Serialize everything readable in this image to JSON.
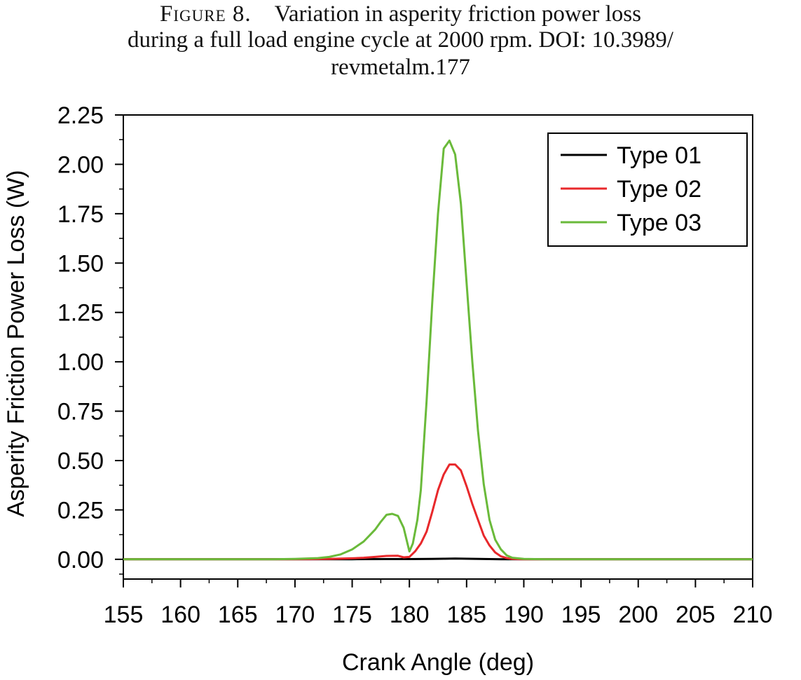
{
  "caption": {
    "figure_label": "Figure 8.",
    "line1": "Variation in asperity friction power loss",
    "line2": "during a full load engine cycle at 2000 rpm. DOI: 10.3989/",
    "line3": "revmetalm.177"
  },
  "chart_data": {
    "type": "line",
    "title": "",
    "xlabel": "Crank Angle (deg)",
    "ylabel": "Asperity Friction Power Loss (W)",
    "xlim": [
      155,
      210
    ],
    "ylim": [
      -0.1,
      2.25
    ],
    "x_ticks": [
      155,
      160,
      165,
      170,
      175,
      180,
      185,
      190,
      195,
      200,
      205,
      210
    ],
    "x_tick_labels": [
      "155",
      "160",
      "165",
      "170",
      "175",
      "180",
      "185",
      "190",
      "195",
      "200",
      "205",
      "210"
    ],
    "y_ticks": [
      0,
      0.25,
      0.5,
      0.75,
      1.0,
      1.25,
      1.5,
      1.75,
      2.0,
      2.25
    ],
    "y_tick_labels": [
      "0.00",
      "0.25",
      "0.50",
      "0.75",
      "1.00",
      "1.25",
      "1.50",
      "1.75",
      "2.00",
      "2.25"
    ],
    "grid": false,
    "legend_position": "top-right",
    "series": [
      {
        "name": "Type 01",
        "color": "#000000",
        "x": [
          155,
          170,
          175,
          178,
          180,
          182,
          183,
          184,
          185,
          186,
          188,
          190,
          210
        ],
        "y": [
          0,
          0,
          0.0005,
          0.001,
          0.001,
          0.002,
          0.003,
          0.004,
          0.003,
          0.002,
          0.0005,
          0,
          0
        ]
      },
      {
        "name": "Type 02",
        "color": "#e8282b",
        "x": [
          155,
          170,
          173,
          175,
          176,
          177,
          178,
          179,
          179.5,
          180,
          180.5,
          181,
          181.5,
          182,
          182.5,
          183,
          183.5,
          184,
          184.5,
          185,
          185.5,
          186,
          186.5,
          187,
          187.5,
          188,
          188.5,
          189,
          190,
          210
        ],
        "y": [
          0,
          0,
          0.002,
          0.005,
          0.008,
          0.012,
          0.017,
          0.018,
          0.01,
          0.012,
          0.04,
          0.08,
          0.14,
          0.24,
          0.35,
          0.43,
          0.48,
          0.48,
          0.45,
          0.37,
          0.28,
          0.2,
          0.12,
          0.07,
          0.035,
          0.015,
          0.006,
          0.002,
          0,
          0
        ]
      },
      {
        "name": "Type 03",
        "color": "#6aba3a",
        "x": [
          155,
          168,
          170,
          172,
          173,
          174,
          175,
          176,
          177,
          177.5,
          178,
          178.5,
          179,
          179.5,
          180,
          180.3,
          180.7,
          181,
          181.5,
          182,
          182.5,
          183,
          183.5,
          184,
          184.5,
          185,
          185.5,
          186,
          186.5,
          187,
          187.5,
          188,
          188.5,
          189,
          190,
          192,
          210
        ],
        "y": [
          0,
          0,
          0.002,
          0.006,
          0.012,
          0.025,
          0.05,
          0.09,
          0.15,
          0.19,
          0.225,
          0.23,
          0.22,
          0.16,
          0.04,
          0.08,
          0.2,
          0.35,
          0.8,
          1.3,
          1.75,
          2.08,
          2.12,
          2.05,
          1.8,
          1.4,
          1.0,
          0.65,
          0.38,
          0.2,
          0.1,
          0.05,
          0.02,
          0.008,
          0.002,
          0,
          0
        ]
      }
    ]
  }
}
